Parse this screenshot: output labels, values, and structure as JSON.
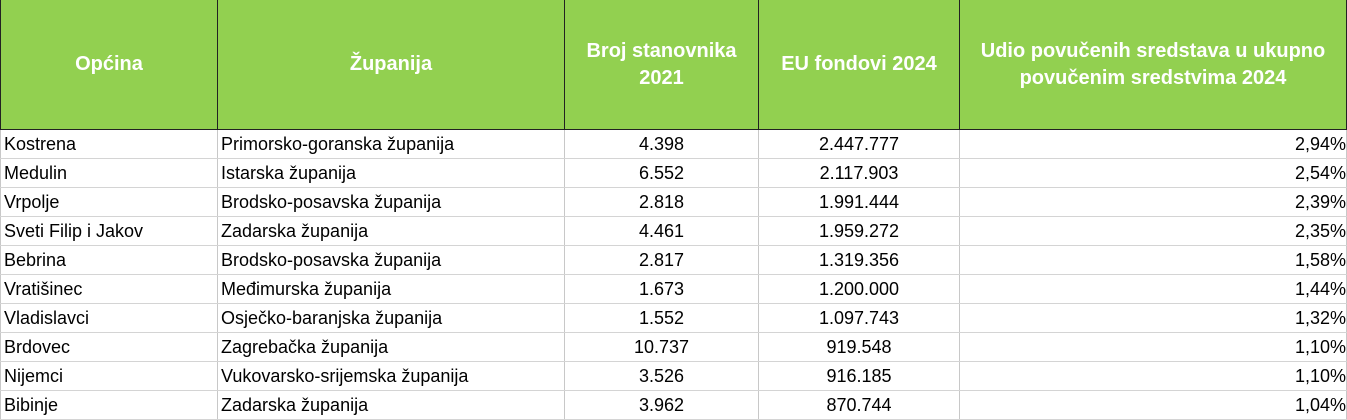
{
  "table": {
    "headers": [
      "Općina",
      "Županija",
      "Broj stanovnika 2021",
      "EU fondovi 2024",
      "Udio povučenih sredstava u ukupno povučenim sredstvima 2024"
    ],
    "rows": [
      [
        "Kostrena",
        "Primorsko-goranska županija",
        "4.398",
        "2.447.777",
        "2,94%"
      ],
      [
        "Medulin",
        "Istarska županija",
        "6.552",
        "2.117.903",
        "2,54%"
      ],
      [
        "Vrpolje",
        "Brodsko-posavska županija",
        "2.818",
        "1.991.444",
        "2,39%"
      ],
      [
        "Sveti Filip i Jakov",
        "Zadarska županija",
        "4.461",
        "1.959.272",
        "2,35%"
      ],
      [
        "Bebrina",
        "Brodsko-posavska županija",
        "2.817",
        "1.319.356",
        "1,58%"
      ],
      [
        "Vratišinec",
        "Međimurska županija",
        "1.673",
        "1.200.000",
        "1,44%"
      ],
      [
        "Vladislavci",
        "Osječko-baranjska županija",
        "1.552",
        "1.097.743",
        "1,32%"
      ],
      [
        "Brdovec",
        "Zagrebačka županija",
        "10.737",
        "919.548",
        "1,10%"
      ],
      [
        "Nijemci",
        "Vukovarsko-srijemska županija",
        "3.526",
        "916.185",
        "1,10%"
      ],
      [
        "Bibinje",
        "Zadarska županija",
        "3.962",
        "870.744",
        "1,04%"
      ]
    ]
  }
}
